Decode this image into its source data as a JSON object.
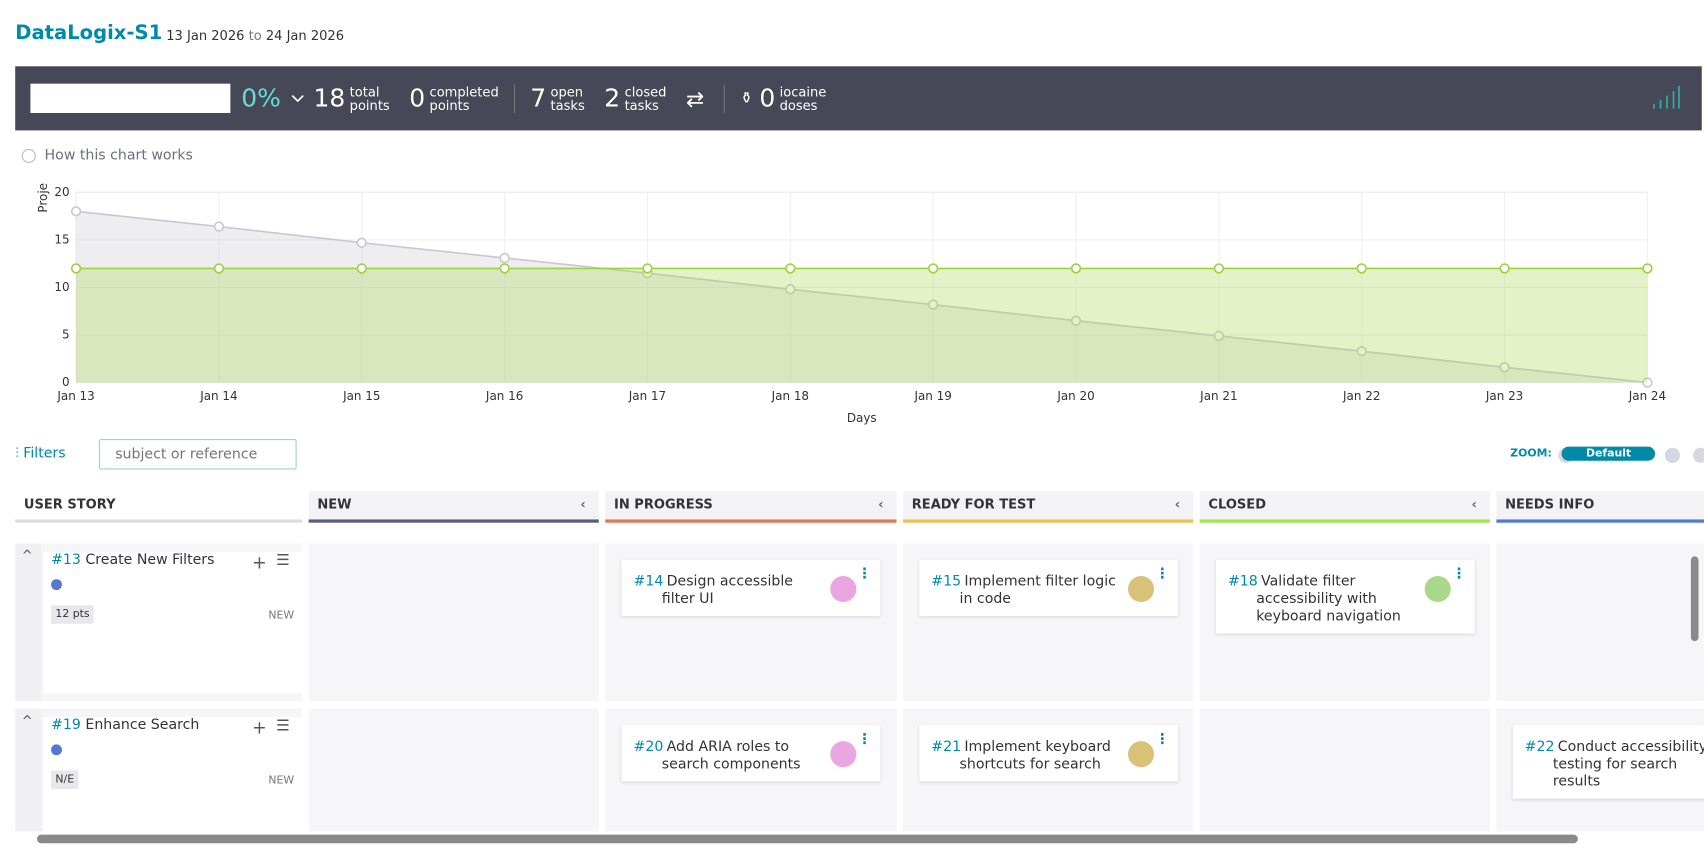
{
  "header": {
    "title": "DataLogix-S1",
    "start": "13 Jan 2026",
    "to": "to",
    "end": "24 Jan 2026"
  },
  "stats": {
    "progress": "0%",
    "items": [
      {
        "value": 18,
        "label": "total points"
      },
      {
        "value": 0,
        "label": "completed points"
      },
      {
        "value": 7,
        "label": "open tasks"
      },
      {
        "value": 2,
        "label": "closed tasks"
      },
      {
        "value": 0,
        "label": "iocaine doses"
      }
    ]
  },
  "help": "How this chart works",
  "chart": {
    "type": "line",
    "y_label": "Proje",
    "x_label": "Days",
    "categories": [
      "Jan 13",
      "Jan 14",
      "Jan 15",
      "Jan 16",
      "Jan 17",
      "Jan 18",
      "Jan 19",
      "Jan 20",
      "Jan 21",
      "Jan 22",
      "Jan 23",
      "Jan 24"
    ],
    "series": [
      {
        "color": "#c8c8d4",
        "values": [
          18,
          16.4,
          14.7,
          13.1,
          11.5,
          9.8,
          8.2,
          6.5,
          4.9,
          3.3,
          1.6,
          0
        ]
      },
      {
        "color": "#9cd33e",
        "values": [
          12,
          12,
          12,
          12,
          12,
          12,
          12,
          12,
          12,
          12,
          12,
          12
        ]
      }
    ],
    "ylim": [
      0,
      20
    ],
    "yticks": [
      0,
      5,
      10,
      15,
      20
    ],
    "grid": true
  },
  "toolbar": {
    "filters": "Filters",
    "search_placeholder": "subject or reference",
    "zoom": "ZOOM:",
    "zoom_level": "Default"
  },
  "board": {
    "columns": [
      {
        "name": "USER STORY"
      },
      {
        "name": "NEW",
        "color": "#5b5f7d"
      },
      {
        "name": "IN PROGRESS",
        "color": "#e07a4f"
      },
      {
        "name": "READY FOR TEST",
        "color": "#e8c54a"
      },
      {
        "name": "CLOSED",
        "color": "#a8e44f"
      },
      {
        "name": "NEEDS INFO",
        "color": "#5178d3"
      }
    ],
    "rows": [
      {
        "ref": "#13",
        "subject": "Create New Filters",
        "points": "12 pts",
        "status": "NEW",
        "cells": [
          [],
          [
            {
              "ref": "#14",
              "subject": "Design accessible filter UI"
            }
          ],
          [
            {
              "ref": "#15",
              "subject": "Implement filter logic in code"
            }
          ],
          [
            {
              "ref": "#18",
              "subject": "Validate filter accessibility with keyboard navigation"
            }
          ],
          []
        ]
      },
      {
        "ref": "#19",
        "subject": "Enhance Search",
        "points": "N/E",
        "status": "NEW",
        "cells": [
          [],
          [
            {
              "ref": "#20",
              "subject": "Add ARIA roles to search components"
            }
          ],
          [
            {
              "ref": "#21",
              "subject": "Implement keyboard shortcuts for search"
            }
          ],
          [],
          [
            {
              "ref": "#22",
              "subject": "Conduct accessibility testing for search results"
            }
          ]
        ]
      }
    ]
  }
}
